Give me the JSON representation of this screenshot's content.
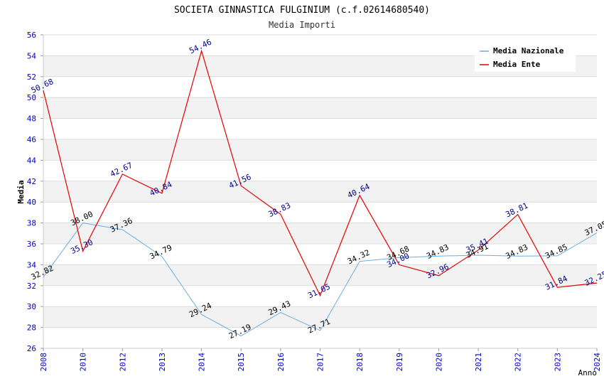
{
  "chart_data": {
    "type": "line",
    "title": "SOCIETA GINNASTICA FULGINIUM (c.f.02614680540)",
    "subtitle": "Media Importi",
    "xlabel": "Anno",
    "ylabel": "Media",
    "ylim": [
      26,
      56
    ],
    "yticks": [
      "26",
      "28",
      "30",
      "32",
      "34",
      "36",
      "38",
      "40",
      "42",
      "44",
      "46",
      "48",
      "50",
      "52",
      "54",
      "56"
    ],
    "categories": [
      "2008",
      "2010",
      "2012",
      "2013",
      "2014",
      "2015",
      "2016",
      "2017",
      "2018",
      "2019",
      "2020",
      "2021",
      "2022",
      "2023",
      "2024"
    ],
    "grid": true,
    "legend_position": "top-right",
    "series": [
      {
        "name": "Media Nazionale",
        "color": "#6aaee6",
        "label_color": "#000000",
        "values": [
          32.82,
          38.0,
          37.36,
          34.79,
          29.24,
          27.19,
          29.43,
          27.71,
          34.32,
          34.68,
          34.83,
          34.91,
          34.83,
          34.85,
          37.05
        ],
        "labels": [
          "32.82",
          "38.00",
          "37.36",
          "34.79",
          "29.24",
          "27.19",
          "29.43",
          "27.71",
          "34.32",
          "34.68",
          "34.83",
          "34.91",
          "34.83",
          "34.85",
          "37.05"
        ]
      },
      {
        "name": "Media Ente",
        "color": "#e60000",
        "label_color": "#00008b",
        "values": [
          50.68,
          35.3,
          42.67,
          40.84,
          54.46,
          41.56,
          38.83,
          31.05,
          40.64,
          34.0,
          32.96,
          35.41,
          38.81,
          31.84,
          32.25
        ],
        "labels": [
          "50.68",
          "35.30",
          "42.67",
          "40.84",
          "54.46",
          "41.56",
          "38.83",
          "31.05",
          "40.64",
          "34.00",
          "32.96",
          "35.41",
          "38.81",
          "31.84",
          "32.25"
        ]
      }
    ]
  }
}
